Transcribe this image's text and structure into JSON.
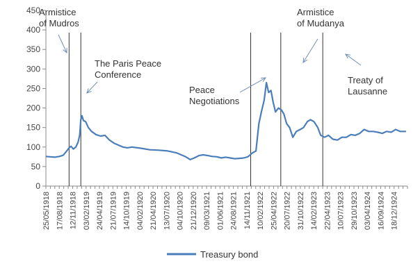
{
  "chart_data": {
    "type": "line",
    "title": "",
    "xlabel": "",
    "ylabel": "",
    "ylim": [
      0,
      450
    ],
    "yticks": [
      0,
      50,
      100,
      150,
      200,
      250,
      300,
      350,
      400,
      450
    ],
    "xlim": [
      "1918-05-25",
      "1925-02-20"
    ],
    "x_tick_labels": [
      "25/05/1918",
      "17/08/1918",
      "12/11/1918",
      "03/02/1919",
      "24/04/1919",
      "21/07/1919",
      "14/10/1919",
      "04/02/1920",
      "21/04/1920",
      "13/07/1920",
      "04/10/1920",
      "21/12/1920",
      "09/03/1921",
      "01/06/1921",
      "24/08/1921",
      "14/11/1921",
      "10/02/1922",
      "25/04/1922",
      "20/07/1922",
      "31/10/1922",
      "14/02/1923",
      "22/04/1923",
      "10/07/1923",
      "29/10/1923",
      "03/04/1924",
      "16/09/1924",
      "18/12/1924"
    ],
    "grid": false,
    "legend": {
      "position": "bottom"
    },
    "colors": {
      "series": "#4a7ebb",
      "axis": "#888888",
      "event_line": "#333333",
      "arrow": "#6f8fb5"
    },
    "series": [
      {
        "name": "Treasury bond",
        "points": [
          [
            "1918-05-25",
            76
          ],
          [
            "1918-06-20",
            75
          ],
          [
            "1918-07-25",
            74
          ],
          [
            "1918-08-25",
            76
          ],
          [
            "1918-09-20",
            79
          ],
          [
            "1918-10-10",
            88
          ],
          [
            "1918-10-30",
            98
          ],
          [
            "1918-11-12",
            102
          ],
          [
            "1918-11-28",
            95
          ],
          [
            "1918-12-15",
            100
          ],
          [
            "1918-12-30",
            112
          ],
          [
            "1919-01-10",
            130
          ],
          [
            "1919-01-18",
            170
          ],
          [
            "1919-01-26",
            180
          ],
          [
            "1919-02-05",
            168
          ],
          [
            "1919-02-20",
            165
          ],
          [
            "1919-03-10",
            150
          ],
          [
            "1919-04-01",
            140
          ],
          [
            "1919-05-01",
            132
          ],
          [
            "1919-06-01",
            128
          ],
          [
            "1919-07-01",
            130
          ],
          [
            "1919-08-01",
            118
          ],
          [
            "1919-09-01",
            110
          ],
          [
            "1919-10-01",
            105
          ],
          [
            "1919-11-01",
            100
          ],
          [
            "1919-12-01",
            98
          ],
          [
            "1920-01-01",
            100
          ],
          [
            "1920-03-01",
            97
          ],
          [
            "1920-05-01",
            93
          ],
          [
            "1920-07-01",
            92
          ],
          [
            "1920-09-01",
            90
          ],
          [
            "1920-11-01",
            85
          ],
          [
            "1921-01-01",
            75
          ],
          [
            "1921-02-01",
            68
          ],
          [
            "1921-03-01",
            72
          ],
          [
            "1921-04-01",
            78
          ],
          [
            "1921-05-01",
            80
          ],
          [
            "1921-06-01",
            78
          ],
          [
            "1921-07-01",
            76
          ],
          [
            "1921-08-01",
            75
          ],
          [
            "1921-09-01",
            72
          ],
          [
            "1921-10-01",
            74
          ],
          [
            "1921-11-01",
            72
          ],
          [
            "1921-12-01",
            70
          ],
          [
            "1922-01-01",
            71
          ],
          [
            "1922-02-01",
            72
          ],
          [
            "1922-03-01",
            75
          ],
          [
            "1922-04-01",
            85
          ],
          [
            "1922-04-25",
            90
          ],
          [
            "1922-05-15",
            160
          ],
          [
            "1922-06-01",
            190
          ],
          [
            "1922-06-20",
            220
          ],
          [
            "1922-07-05",
            265
          ],
          [
            "1922-07-20",
            240
          ],
          [
            "1922-08-05",
            245
          ],
          [
            "1922-08-20",
            215
          ],
          [
            "1922-09-05",
            190
          ],
          [
            "1922-09-25",
            200
          ],
          [
            "1922-10-15",
            195
          ],
          [
            "1922-11-01",
            185
          ],
          [
            "1922-11-20",
            160
          ],
          [
            "1922-12-10",
            150
          ],
          [
            "1923-01-01",
            125
          ],
          [
            "1923-01-25",
            140
          ],
          [
            "1923-02-20",
            145
          ],
          [
            "1923-03-15",
            150
          ],
          [
            "1923-04-10",
            165
          ],
          [
            "1923-05-01",
            170
          ],
          [
            "1923-05-25",
            165
          ],
          [
            "1923-06-20",
            150
          ],
          [
            "1923-07-10",
            130
          ],
          [
            "1923-08-05",
            125
          ],
          [
            "1923-09-01",
            130
          ],
          [
            "1923-10-01",
            120
          ],
          [
            "1923-11-01",
            118
          ],
          [
            "1923-12-01",
            125
          ],
          [
            "1924-01-01",
            125
          ],
          [
            "1924-02-01",
            132
          ],
          [
            "1924-03-01",
            130
          ],
          [
            "1924-04-01",
            135
          ],
          [
            "1924-05-01",
            145
          ],
          [
            "1924-06-01",
            140
          ],
          [
            "1924-07-01",
            140
          ],
          [
            "1924-08-01",
            138
          ],
          [
            "1924-09-01",
            135
          ],
          [
            "1924-10-01",
            140
          ],
          [
            "1924-11-01",
            138
          ],
          [
            "1924-12-01",
            145
          ],
          [
            "1925-01-01",
            140
          ],
          [
            "1925-02-10",
            140
          ]
        ]
      }
    ],
    "events": [
      {
        "date": "1918-10-30",
        "label_lines": [
          "Armistice",
          "of Mudros"
        ]
      },
      {
        "date": "1919-01-18",
        "label_lines": [
          "The Paris Peace",
          "Conference"
        ]
      },
      {
        "date": "1922-03-20",
        "label_lines": [
          "Peace",
          "Negotiations"
        ]
      },
      {
        "date": "1922-10-11",
        "label_lines": [
          "Armistice",
          "of Mudanya"
        ]
      },
      {
        "date": "1923-07-24",
        "label_lines": [
          "Treaty of",
          "Lausanne"
        ]
      }
    ]
  }
}
